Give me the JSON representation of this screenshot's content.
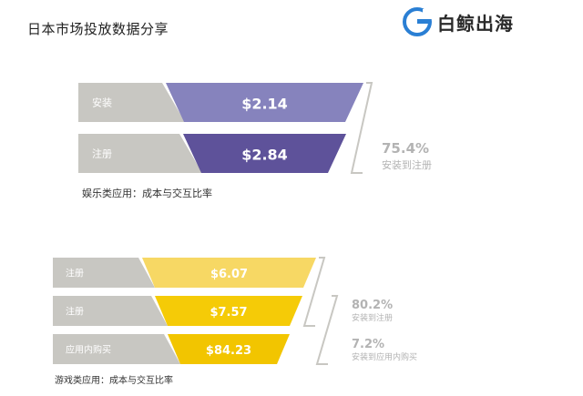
{
  "page": {
    "title": "日本市场投放数据分享",
    "brand": "白鲸出海",
    "logo_icon": "whale-logo-icon"
  },
  "colors": {
    "gray": "#c8c7c2",
    "purple_1": "#8683bd",
    "purple_2": "#5e529a",
    "yellow_1": "#f7d864",
    "yellow_2": "#f5cb07",
    "yellow_3": "#f2c500",
    "annotation": "#b3b3b3",
    "logo_blue": "#2a7fd4"
  },
  "chart_data": [
    {
      "type": "funnel",
      "caption": "娱乐类应用：成本与交互比率",
      "categories": [
        "安装",
        "注册"
      ],
      "values": [
        2.14,
        2.84
      ],
      "value_labels": [
        "$2.14",
        "$2.84"
      ],
      "conversions": [
        {
          "rate": "75.4%",
          "label": "安装到注册"
        }
      ]
    },
    {
      "type": "funnel",
      "caption": "游戏类应用：成本与交互比率",
      "categories": [
        "注册",
        "注册",
        "应用内购买"
      ],
      "values": [
        6.07,
        7.57,
        84.23
      ],
      "value_labels": [
        "$6.07",
        "$7.57",
        "$84.23"
      ],
      "conversions": [
        {
          "rate": "80.2%",
          "label": "安装到注册"
        },
        {
          "rate": "7.2%",
          "label": "安装到应用内购买"
        }
      ]
    }
  ]
}
